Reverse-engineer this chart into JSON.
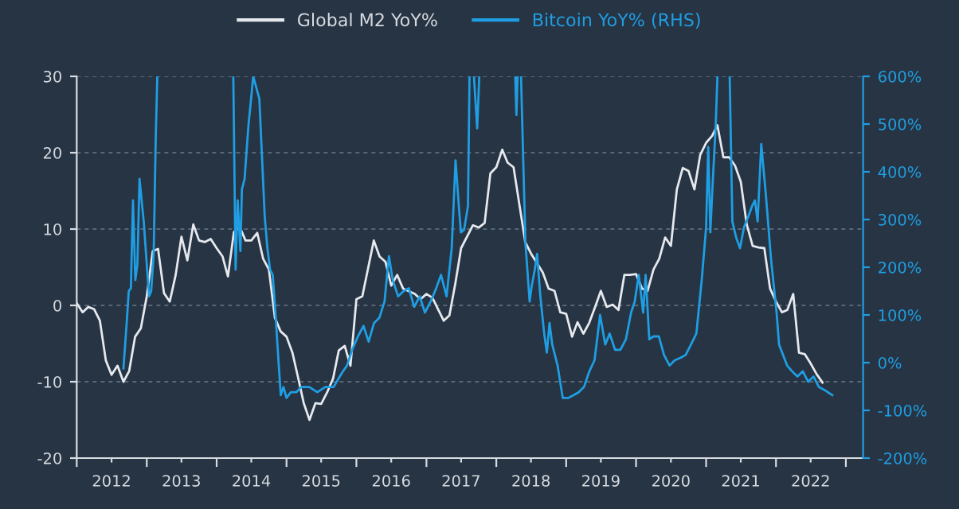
{
  "chart_data": {
    "type": "line",
    "legend": "top",
    "grid": "y",
    "line_style": "solid",
    "marker": "none",
    "xlim": [
      "2012-01-01",
      "2023-04-01"
    ],
    "xticks": [
      {
        "value": "2012-01-01",
        "label": null
      },
      {
        "value": "2012-07-01",
        "label": "2012"
      },
      {
        "value": "2013-01-01",
        "label": null
      },
      {
        "value": "2013-07-01",
        "label": "2013"
      },
      {
        "value": "2014-01-01",
        "label": null
      },
      {
        "value": "2014-07-01",
        "label": "2014"
      },
      {
        "value": "2015-01-01",
        "label": null
      },
      {
        "value": "2015-07-01",
        "label": "2015"
      },
      {
        "value": "2016-01-01",
        "label": null
      },
      {
        "value": "2016-07-01",
        "label": "2016"
      },
      {
        "value": "2017-01-01",
        "label": null
      },
      {
        "value": "2017-07-01",
        "label": "2017"
      },
      {
        "value": "2018-01-01",
        "label": null
      },
      {
        "value": "2018-07-01",
        "label": "2018"
      },
      {
        "value": "2019-01-01",
        "label": null
      },
      {
        "value": "2019-07-01",
        "label": "2019"
      },
      {
        "value": "2020-01-01",
        "label": null
      },
      {
        "value": "2020-07-01",
        "label": "2020"
      },
      {
        "value": "2021-01-01",
        "label": null
      },
      {
        "value": "2021-07-01",
        "label": "2021"
      },
      {
        "value": "2022-01-01",
        "label": null
      },
      {
        "value": "2022-07-01",
        "label": "2022"
      },
      {
        "value": "2023-01-01",
        "label": null
      }
    ],
    "ylim": [
      -20,
      30
    ],
    "yticks": [
      -20,
      -10,
      0,
      10,
      20,
      30
    ],
    "y2lim": [
      -200,
      600
    ],
    "y2ticks": [
      {
        "value": -200,
        "label": "-200%"
      },
      {
        "value": -100,
        "label": "-100%"
      },
      {
        "value": 0,
        "label": "0%"
      },
      {
        "value": 100,
        "label": "100%"
      },
      {
        "value": 200,
        "label": "200%"
      },
      {
        "value": 300,
        "label": "300%"
      },
      {
        "value": 400,
        "label": "400%"
      },
      {
        "value": 500,
        "label": "500%"
      },
      {
        "value": 600,
        "label": "600%"
      }
    ],
    "series": [
      {
        "name": "Global M2 YoY%",
        "color": "#e6e9ee",
        "x": [
          "2012-01",
          "2012-02",
          "2012-03",
          "2012-04",
          "2012-05",
          "2012-06",
          "2012-07",
          "2012-08",
          "2012-09",
          "2012-10",
          "2012-11",
          "2012-12",
          "2013-01",
          "2013-02",
          "2013-03",
          "2013-04",
          "2013-05",
          "2013-06",
          "2013-07",
          "2013-08",
          "2013-09",
          "2013-10",
          "2013-11",
          "2013-12",
          "2014-01",
          "2014-02",
          "2014-03",
          "2014-04",
          "2014-05",
          "2014-06",
          "2014-07",
          "2014-08",
          "2014-09",
          "2014-10",
          "2014-11",
          "2014-12",
          "2015-01",
          "2015-02",
          "2015-03",
          "2015-04",
          "2015-05",
          "2015-06",
          "2015-07",
          "2015-08",
          "2015-09",
          "2015-10",
          "2015-11",
          "2015-12",
          "2016-01",
          "2016-02",
          "2016-04",
          "2016-05",
          "2016-06",
          "2016-07",
          "2016-08",
          "2016-09",
          "2016-11",
          "2016-12",
          "2017-01",
          "2017-02",
          "2017-04",
          "2017-05",
          "2017-06",
          "2017-07",
          "2017-09",
          "2017-10",
          "2017-11",
          "2017-12",
          "2018-01",
          "2018-02",
          "2018-03",
          "2018-04",
          "2018-06",
          "2018-07",
          "2018-09",
          "2018-10",
          "2018-11",
          "2018-12",
          "2019-01",
          "2019-02",
          "2019-03",
          "2019-04",
          "2019-05",
          "2019-06",
          "2019-07",
          "2019-08",
          "2019-09",
          "2019-10",
          "2019-11",
          "2019-12",
          "2020-01",
          "2020-02",
          "2020-03",
          "2020-04",
          "2020-05",
          "2020-06",
          "2020-07",
          "2020-08",
          "2020-09",
          "2020-10",
          "2020-11",
          "2020-12",
          "2021-01",
          "2021-02",
          "2021-03",
          "2021-04",
          "2021-05",
          "2021-06",
          "2021-07",
          "2021-08",
          "2021-09",
          "2021-10",
          "2021-11",
          "2021-12",
          "2022-01",
          "2022-02",
          "2022-03",
          "2022-04",
          "2022-05",
          "2022-06",
          "2022-07",
          "2022-08",
          "2022-09"
        ],
        "values": [
          0.3,
          -0.9,
          -0.2,
          -0.5,
          -2.0,
          -7.2,
          -9.1,
          -7.9,
          -10.0,
          -8.6,
          -4.1,
          -3.0,
          1.2,
          7.1,
          7.4,
          1.6,
          0.5,
          4.0,
          9.0,
          5.9,
          10.6,
          8.5,
          8.3,
          8.7,
          7.5,
          6.4,
          3.8,
          9.6,
          10.3,
          8.5,
          8.5,
          9.5,
          6.1,
          4.7,
          -1.6,
          -3.4,
          -4.1,
          -6.2,
          -9.3,
          -12.8,
          -15.0,
          -12.8,
          -12.9,
          -11.4,
          -9.6,
          -5.9,
          -5.3,
          -7.9,
          0.8,
          1.2,
          8.5,
          6.4,
          5.7,
          2.6,
          4.0,
          2.2,
          1.5,
          0.8,
          1.5,
          1.0,
          -2.0,
          -1.3,
          2.9,
          7.5,
          10.5,
          10.2,
          10.8,
          17.3,
          18.1,
          20.4,
          18.7,
          18.1,
          8.3,
          6.8,
          4.3,
          2.2,
          1.9,
          -0.9,
          -1.1,
          -4.1,
          -2.2,
          -3.7,
          -2.3,
          -0.2,
          1.9,
          -0.2,
          0.1,
          -0.6,
          4.0,
          4.0,
          4.1,
          2.2,
          1.9,
          4.7,
          6.1,
          8.9,
          7.8,
          15.2,
          18.0,
          17.6,
          15.2,
          19.7,
          21.3,
          22.2,
          23.6,
          19.4,
          19.4,
          18.3,
          16.2,
          10.6,
          7.8,
          7.6,
          7.5,
          2.2,
          0.5,
          -0.9,
          -0.6,
          1.5,
          -6.2,
          -6.4,
          -7.6,
          -9.0,
          -10.1
        ]
      },
      {
        "name": "Bitcoin YoY% (RHS)",
        "color": "#1f9ee3",
        "axis": "y2",
        "x": [
          "2012-09-01",
          "2012-09-18",
          "2012-09-29",
          "2012-10-10",
          "2012-10-21",
          "2012-11-02",
          "2012-11-13",
          "2012-11-24",
          "2012-12-05",
          "2012-12-16",
          "2012-12-30",
          "2013-01-13",
          "2013-01-24",
          "2013-02-06",
          "2013-02-17",
          "2013-02-25",
          "2013-08-01",
          "2014-03-29",
          "2014-04-10",
          "2014-04-21",
          "2014-05-05",
          "2014-05-13",
          "2014-05-27",
          "2014-06-16",
          "2014-06-30",
          "2014-07-11",
          "2014-08-12",
          "2014-08-26",
          "2014-09-09",
          "2014-09-23",
          "2014-10-07",
          "2014-10-21",
          "2014-11-04",
          "2014-11-18",
          "2014-12-02",
          "2014-12-16",
          "2015-01-01",
          "2015-01-23",
          "2015-02-21",
          "2015-03-18",
          "2015-04-30",
          "2015-06-11",
          "2015-07-22",
          "2015-09-04",
          "2015-10-15",
          "2015-11-13",
          "2015-12-10",
          "2016-01-09",
          "2016-02-07",
          "2016-03-05",
          "2016-04-02",
          "2016-04-30",
          "2016-05-27",
          "2016-06-19",
          "2016-07-09",
          "2016-08-06",
          "2016-09-04",
          "2016-10-01",
          "2016-10-29",
          "2016-11-27",
          "2016-12-24",
          "2017-01-23",
          "2017-02-21",
          "2017-03-18",
          "2017-04-16",
          "2017-05-13",
          "2017-06-02",
          "2017-06-19",
          "2017-06-30",
          "2017-07-17",
          "2017-08-06",
          "2017-08-14",
          "2017-08-20",
          "2017-09-06",
          "2017-09-23",
          "2017-10-04",
          "2017-10-15",
          "2018-04-10",
          "2018-04-16",
          "2018-04-22",
          "2018-05-01",
          "2018-05-10",
          "2018-06-02",
          "2018-06-24",
          "2018-07-05",
          "2018-07-21",
          "2018-08-02",
          "2018-08-19",
          "2018-09-08",
          "2018-09-22",
          "2018-10-06",
          "2018-10-20",
          "2018-11-17",
          "2018-12-14",
          "2019-01-12",
          "2019-02-09",
          "2019-03-07",
          "2019-04-04",
          "2019-05-02",
          "2019-05-29",
          "2019-06-27",
          "2019-07-24",
          "2019-08-16",
          "2019-09-13",
          "2019-10-11",
          "2019-11-09",
          "2019-12-06",
          "2019-12-25",
          "2020-01-15",
          "2020-02-07",
          "2020-02-20",
          "2020-03-10",
          "2020-04-01",
          "2020-04-29",
          "2020-05-26",
          "2020-06-24",
          "2020-07-21",
          "2020-08-19",
          "2020-09-16",
          "2020-10-14",
          "2020-11-11",
          "2020-12-09",
          "2021-01-01",
          "2021-01-12",
          "2021-01-23",
          "2021-02-04",
          "2021-02-20",
          "2021-03-01",
          "2021-03-15",
          "2021-05-04",
          "2021-05-18",
          "2021-06-07",
          "2021-06-27",
          "2021-07-18",
          "2021-08-10",
          "2021-08-30",
          "2021-09-13",
          "2021-09-27",
          "2021-10-16",
          "2021-11-09",
          "2021-12-06",
          "2022-01-04",
          "2022-01-17",
          "2022-02-07",
          "2022-02-28",
          "2022-03-26",
          "2022-04-23",
          "2022-05-21",
          "2022-06-18",
          "2022-07-16",
          "2022-08-13",
          "2022-09-10",
          "2022-10-22"
        ],
        "values": [
          -12,
          83,
          150,
          156,
          340,
          173,
          206,
          385,
          340,
          296,
          217,
          139,
          150,
          228,
          475,
          600,
          null,
          600,
          195,
          340,
          234,
          363,
          385,
          497,
          553,
          600,
          553,
          430,
          307,
          240,
          195,
          184,
          105,
          16,
          -68,
          -51,
          -74,
          -62,
          -62,
          -51,
          -51,
          -62,
          -51,
          -51,
          -23,
          -6,
          27,
          55,
          77,
          44,
          83,
          94,
          128,
          223,
          173,
          139,
          150,
          156,
          117,
          139,
          105,
          128,
          156,
          184,
          139,
          240,
          424,
          329,
          273,
          279,
          329,
          600,
          null,
          600,
          491,
          600,
          null,
          600,
          519,
          600,
          null,
          600,
          251,
          128,
          161,
          195,
          228,
          139,
          61,
          21,
          83,
          38,
          -6,
          -74,
          -74,
          -68,
          -62,
          -51,
          -18,
          5,
          100,
          38,
          61,
          27,
          27,
          49,
          105,
          128,
          184,
          105,
          184,
          49,
          55,
          55,
          16,
          -6,
          5,
          10,
          16,
          38,
          61,
          173,
          284,
          452,
          273,
          374,
          497,
          600,
          null,
          600,
          296,
          262,
          240,
          284,
          307,
          329,
          340,
          296,
          458,
          352,
          217,
          105,
          38,
          16,
          -6,
          -18,
          -29,
          -18,
          -40,
          -29,
          -51,
          -57,
          -68
        ]
      }
    ]
  }
}
